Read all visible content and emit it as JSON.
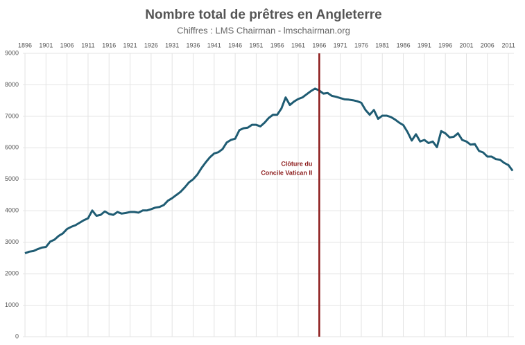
{
  "chart_data": {
    "type": "line",
    "title": "Nombre total de prêtres en Angleterre",
    "subtitle": "Chiffres : LMS Chairman - lmschairman.org",
    "x": [
      1896,
      1897,
      1898,
      1899,
      1900,
      1901,
      1902,
      1903,
      1904,
      1905,
      1906,
      1907,
      1908,
      1909,
      1910,
      1911,
      1912,
      1913,
      1914,
      1915,
      1916,
      1917,
      1918,
      1919,
      1920,
      1921,
      1922,
      1923,
      1924,
      1925,
      1926,
      1927,
      1928,
      1929,
      1930,
      1931,
      1932,
      1933,
      1934,
      1935,
      1936,
      1937,
      1938,
      1939,
      1940,
      1941,
      1942,
      1943,
      1944,
      1945,
      1946,
      1947,
      1948,
      1949,
      1950,
      1951,
      1952,
      1953,
      1954,
      1955,
      1956,
      1957,
      1958,
      1959,
      1960,
      1961,
      1962,
      1963,
      1964,
      1965,
      1966,
      1967,
      1968,
      1969,
      1970,
      1971,
      1972,
      1973,
      1974,
      1975,
      1976,
      1977,
      1978,
      1979,
      1980,
      1981,
      1982,
      1983,
      1984,
      1985,
      1986,
      1987,
      1988,
      1989,
      1990,
      1991,
      1992,
      1993,
      1994,
      1995,
      1996,
      1997,
      1998,
      1999,
      2000,
      2001,
      2002,
      2003,
      2004,
      2005,
      2006,
      2007,
      2008,
      2009,
      2010,
      2011,
      2012
    ],
    "series": [
      {
        "color": "#1f5c73",
        "values": [
          2650,
          2700,
          2720,
          2780,
          2830,
          2850,
          3020,
          3080,
          3200,
          3280,
          3420,
          3490,
          3540,
          3620,
          3700,
          3760,
          4010,
          3840,
          3870,
          3980,
          3900,
          3870,
          3960,
          3910,
          3930,
          3960,
          3960,
          3940,
          4010,
          4010,
          4050,
          4100,
          4120,
          4180,
          4320,
          4400,
          4500,
          4600,
          4740,
          4900,
          5000,
          5150,
          5360,
          5540,
          5700,
          5820,
          5860,
          5960,
          6170,
          6250,
          6290,
          6560,
          6620,
          6640,
          6730,
          6730,
          6680,
          6800,
          6950,
          7050,
          7050,
          7250,
          7600,
          7360,
          7470,
          7550,
          7600,
          7700,
          7800,
          7880,
          7820,
          7720,
          7740,
          7650,
          7620,
          7580,
          7540,
          7530,
          7510,
          7480,
          7430,
          7200,
          7050,
          7200,
          6920,
          7020,
          7020,
          6980,
          6900,
          6800,
          6720,
          6500,
          6230,
          6430,
          6200,
          6250,
          6150,
          6200,
          6020,
          6530,
          6460,
          6330,
          6350,
          6460,
          6250,
          6200,
          6100,
          6120,
          5900,
          5850,
          5720,
          5720,
          5640,
          5620,
          5520,
          5450,
          5270
        ]
      }
    ],
    "xlim": [
      1895.5,
      2012.3
    ],
    "xticks": [
      1896,
      1901,
      1906,
      1911,
      1916,
      1921,
      1926,
      1931,
      1936,
      1941,
      1946,
      1951,
      1956,
      1961,
      1966,
      1971,
      1976,
      1981,
      1986,
      1991,
      1996,
      2001,
      2006,
      2011
    ],
    "ylim": [
      0,
      9000
    ],
    "yticks": [
      0,
      1000,
      2000,
      3000,
      4000,
      5000,
      6000,
      7000,
      8000,
      9000
    ],
    "grid": true,
    "annotation": {
      "x": 1966,
      "color": "#8b1a1a",
      "text": [
        "Clôture du",
        "Concile Vatican II"
      ]
    }
  }
}
